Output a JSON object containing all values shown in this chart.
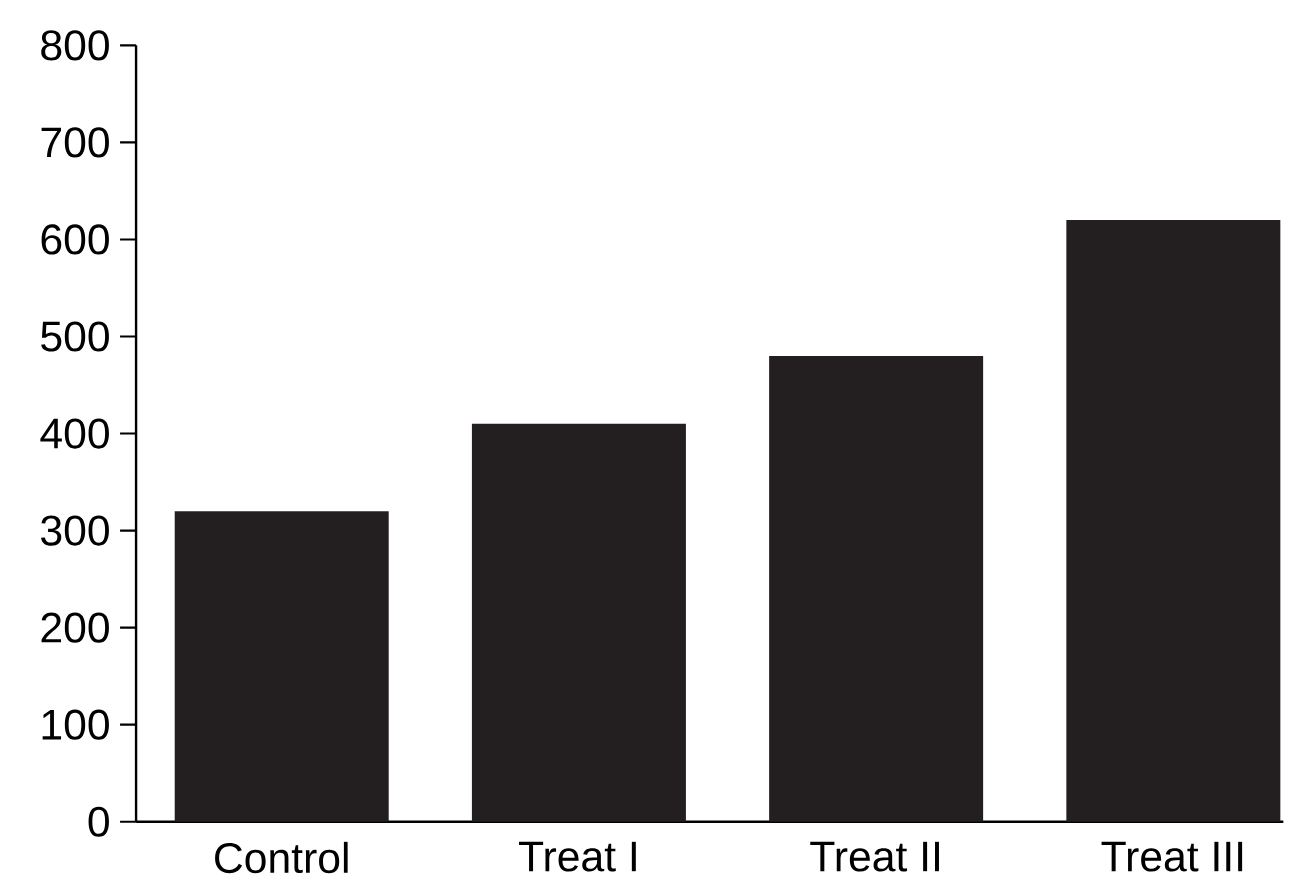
{
  "chart_data": {
    "type": "bar",
    "categories": [
      "Control",
      "Treat I",
      "Treat II",
      "Treat III"
    ],
    "values": [
      320,
      410,
      480,
      620
    ],
    "color": "#231f20",
    "ylim": [
      0,
      800
    ],
    "yticks": [
      0,
      100,
      200,
      300,
      400,
      500,
      600,
      700,
      800
    ],
    "grid": false
  }
}
